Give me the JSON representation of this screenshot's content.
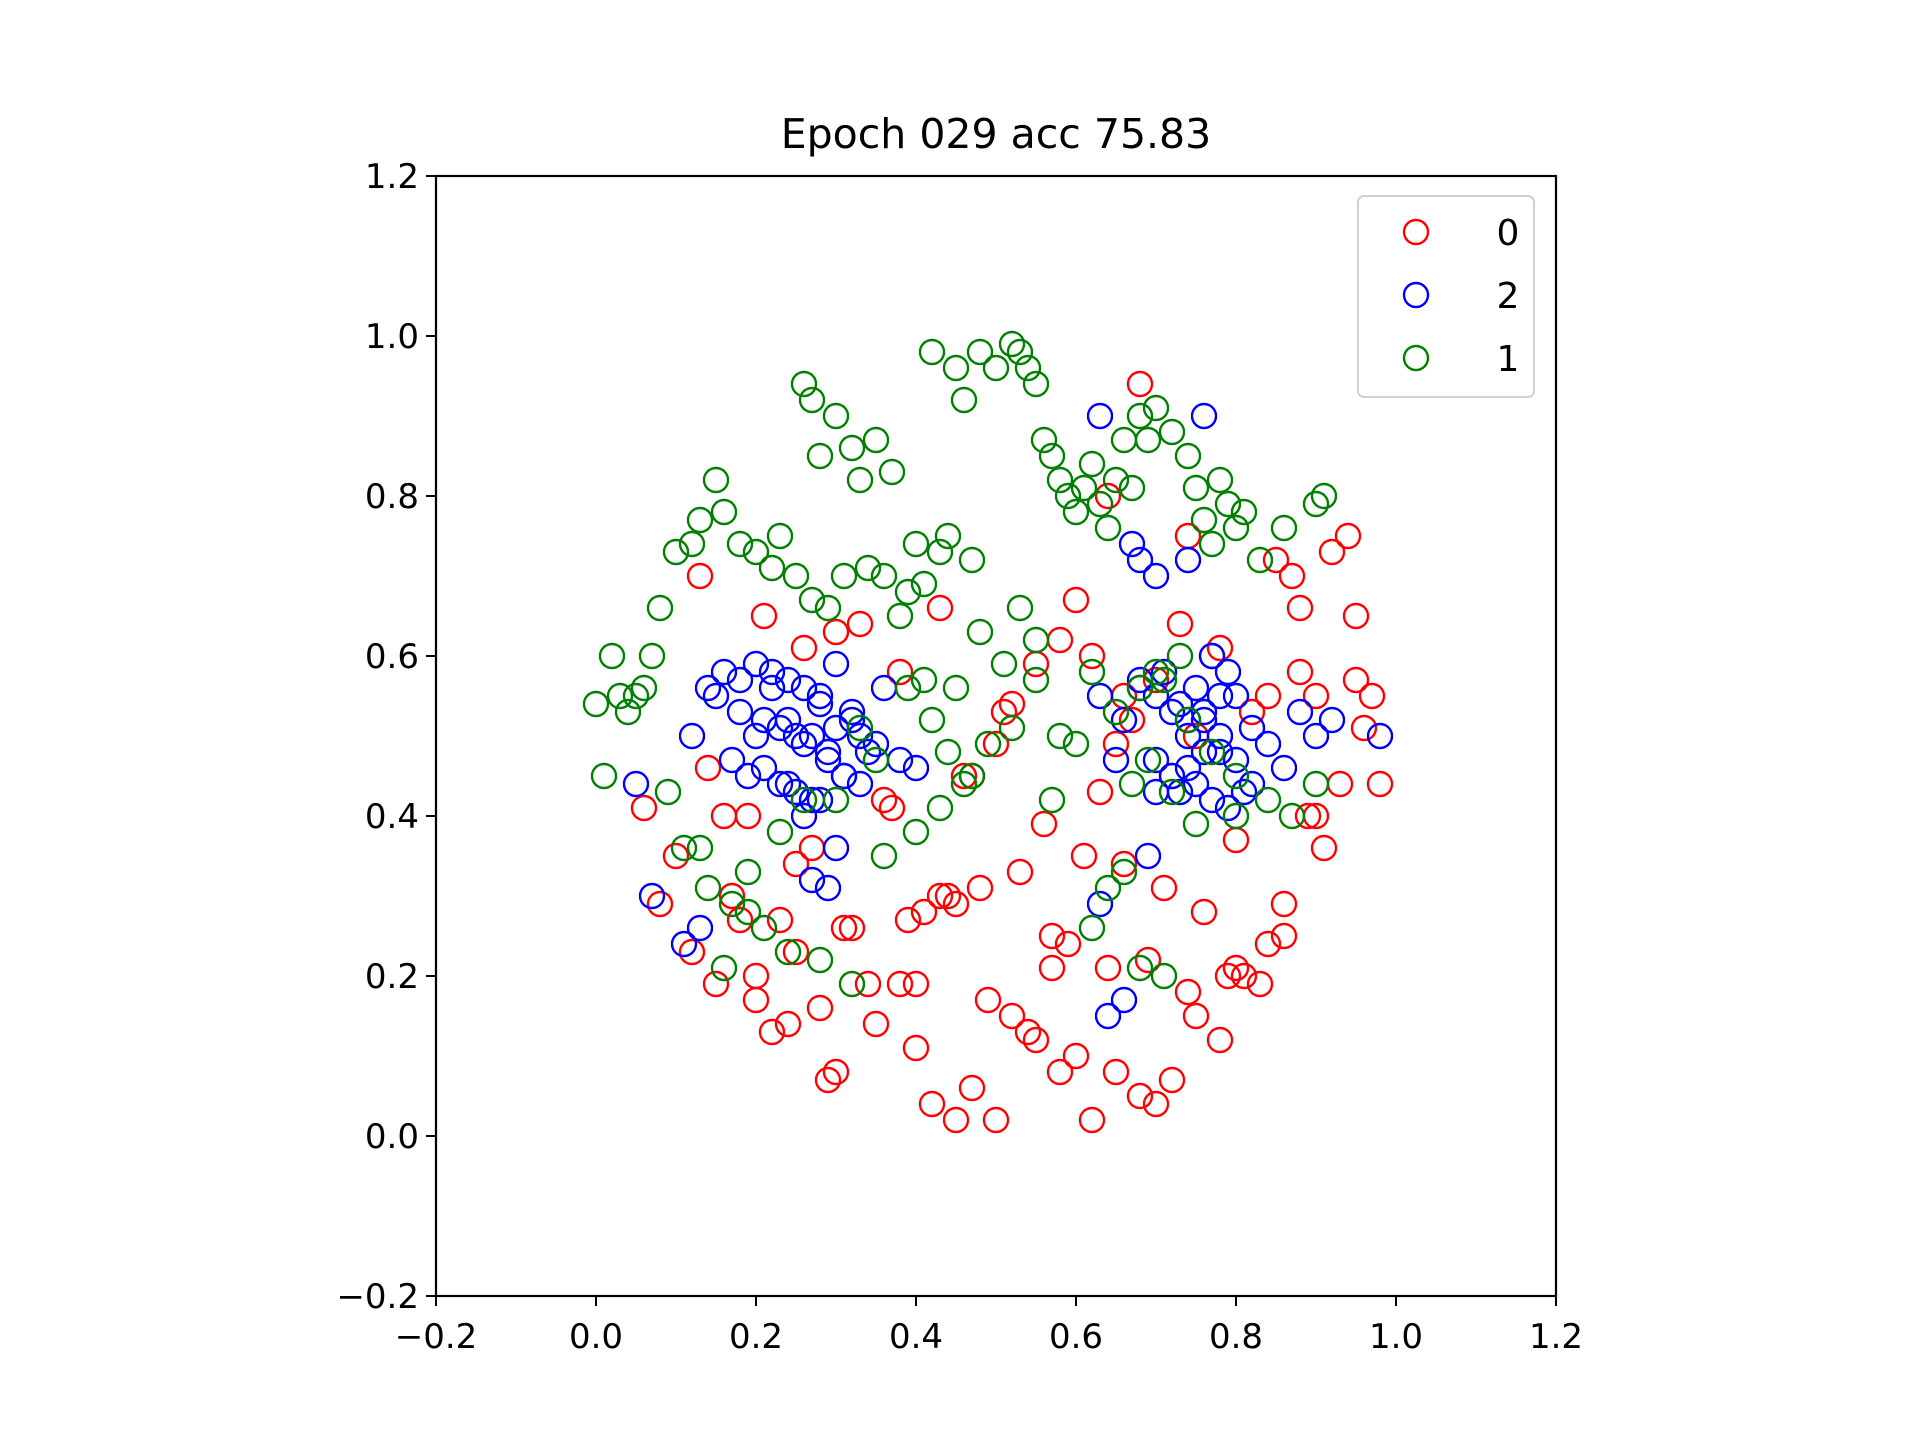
{
  "chart_data": {
    "type": "scatter",
    "title": "Epoch 029 acc  75.83",
    "xlabel": "",
    "ylabel": "",
    "xlim": [
      -0.2,
      1.2
    ],
    "ylim": [
      -0.2,
      1.2
    ],
    "xticks": [
      "−0.2",
      "0.0",
      "0.2",
      "0.4",
      "0.6",
      "0.8",
      "1.0",
      "1.2"
    ],
    "yticks": [
      "−0.2",
      "0.0",
      "0.2",
      "0.4",
      "0.6",
      "0.8",
      "1.0",
      "1.2"
    ],
    "legend_position": "top-right",
    "marker": "open-circle",
    "series": [
      {
        "name": "0",
        "color": "#ff0000",
        "x": [
          0.94,
          0.87,
          0.95,
          0.96,
          0.98,
          0.92,
          0.85,
          0.88,
          0.9,
          0.95,
          0.89,
          0.86,
          0.83,
          0.8,
          0.78,
          0.75,
          0.72,
          0.7,
          0.68,
          0.65,
          0.62,
          0.6,
          0.58,
          0.55,
          0.52,
          0.5,
          0.47,
          0.45,
          0.42,
          0.4,
          0.38,
          0.35,
          0.32,
          0.3,
          0.28,
          0.25,
          0.22,
          0.2,
          0.18,
          0.15,
          0.12,
          0.1,
          0.08,
          0.06,
          0.14,
          0.19,
          0.23,
          0.27,
          0.31,
          0.36,
          0.41,
          0.44,
          0.48,
          0.53,
          0.57,
          0.61,
          0.66,
          0.71,
          0.76,
          0.81,
          0.86,
          0.91,
          0.84,
          0.79,
          0.74,
          0.69,
          0.64,
          0.59,
          0.54,
          0.49,
          0.43,
          0.39,
          0.34,
          0.29,
          0.24,
          0.17,
          0.21,
          0.26,
          0.33,
          0.37,
          0.46,
          0.51,
          0.56,
          0.63,
          0.67,
          0.73,
          0.77,
          0.82,
          0.88,
          0.93,
          0.97,
          0.65,
          0.7,
          0.75,
          0.8,
          0.6,
          0.55,
          0.5,
          0.45,
          0.4,
          0.58,
          0.62,
          0.66,
          0.72,
          0.78,
          0.84,
          0.9,
          0.68,
          0.74,
          0.64,
          0.57,
          0.52,
          0.47,
          0.43,
          0.38,
          0.3,
          0.25,
          0.2,
          0.16,
          0.13
        ],
        "y": [
          0.75,
          0.7,
          0.57,
          0.51,
          0.44,
          0.73,
          0.72,
          0.66,
          0.55,
          0.65,
          0.4,
          0.25,
          0.19,
          0.21,
          0.12,
          0.15,
          0.07,
          0.04,
          0.05,
          0.08,
          0.02,
          0.1,
          0.08,
          0.12,
          0.15,
          0.02,
          0.06,
          0.02,
          0.04,
          0.11,
          0.19,
          0.14,
          0.26,
          0.08,
          0.16,
          0.23,
          0.13,
          0.17,
          0.27,
          0.19,
          0.23,
          0.35,
          0.29,
          0.41,
          0.46,
          0.4,
          0.27,
          0.36,
          0.26,
          0.42,
          0.28,
          0.3,
          0.31,
          0.33,
          0.25,
          0.35,
          0.34,
          0.31,
          0.28,
          0.2,
          0.29,
          0.36,
          0.24,
          0.2,
          0.18,
          0.22,
          0.21,
          0.24,
          0.13,
          0.17,
          0.3,
          0.27,
          0.19,
          0.07,
          0.14,
          0.3,
          0.65,
          0.61,
          0.64,
          0.41,
          0.45,
          0.53,
          0.39,
          0.43,
          0.52,
          0.64,
          0.6,
          0.53,
          0.58,
          0.44,
          0.55,
          0.49,
          0.57,
          0.5,
          0.37,
          0.67,
          0.59,
          0.49,
          0.29,
          0.19,
          0.62,
          0.6,
          0.55,
          0.45,
          0.61,
          0.55,
          0.4,
          0.94,
          0.75,
          0.8,
          0.21,
          0.54,
          0.45,
          0.66,
          0.58,
          0.63,
          0.34,
          0.2,
          0.4,
          0.7
        ]
      },
      {
        "name": "2",
        "color": "#0000ff",
        "x": [
          0.15,
          0.18,
          0.2,
          0.22,
          0.24,
          0.26,
          0.28,
          0.3,
          0.32,
          0.34,
          0.17,
          0.19,
          0.21,
          0.23,
          0.25,
          0.27,
          0.29,
          0.31,
          0.33,
          0.35,
          0.14,
          0.16,
          0.18,
          0.2,
          0.22,
          0.24,
          0.26,
          0.28,
          0.3,
          0.32,
          0.36,
          0.38,
          0.4,
          0.21,
          0.23,
          0.25,
          0.27,
          0.29,
          0.31,
          0.26,
          0.28,
          0.24,
          0.27,
          0.29,
          0.3,
          0.33,
          0.12,
          0.11,
          0.07,
          0.05,
          0.13,
          0.7,
          0.72,
          0.74,
          0.76,
          0.78,
          0.8,
          0.82,
          0.84,
          0.86,
          0.68,
          0.7,
          0.72,
          0.74,
          0.76,
          0.78,
          0.8,
          0.82,
          0.66,
          0.68,
          0.7,
          0.73,
          0.75,
          0.77,
          0.79,
          0.81,
          0.73,
          0.75,
          0.77,
          0.79,
          0.74,
          0.76,
          0.78,
          0.71,
          0.65,
          0.63,
          0.88,
          0.9,
          0.92,
          0.98,
          0.67,
          0.7,
          0.74,
          0.76,
          0.63,
          0.68,
          0.66,
          0.69,
          0.64,
          0.63
        ],
        "y": [
          0.55,
          0.53,
          0.5,
          0.56,
          0.52,
          0.49,
          0.54,
          0.51,
          0.53,
          0.48,
          0.47,
          0.45,
          0.46,
          0.44,
          0.43,
          0.42,
          0.47,
          0.45,
          0.44,
          0.49,
          0.56,
          0.58,
          0.57,
          0.59,
          0.58,
          0.57,
          0.56,
          0.55,
          0.59,
          0.52,
          0.56,
          0.47,
          0.46,
          0.52,
          0.51,
          0.5,
          0.5,
          0.48,
          0.45,
          0.4,
          0.42,
          0.44,
          0.32,
          0.31,
          0.36,
          0.5,
          0.5,
          0.24,
          0.3,
          0.44,
          0.26,
          0.55,
          0.53,
          0.5,
          0.52,
          0.48,
          0.55,
          0.51,
          0.49,
          0.46,
          0.57,
          0.47,
          0.45,
          0.46,
          0.48,
          0.5,
          0.47,
          0.44,
          0.52,
          0.56,
          0.43,
          0.43,
          0.44,
          0.42,
          0.41,
          0.43,
          0.54,
          0.56,
          0.6,
          0.58,
          0.52,
          0.53,
          0.55,
          0.58,
          0.47,
          0.55,
          0.53,
          0.5,
          0.52,
          0.5,
          0.74,
          0.7,
          0.72,
          0.9,
          0.9,
          0.72,
          0.17,
          0.35,
          0.15,
          0.29
        ]
      },
      {
        "name": "1",
        "color": "#008000",
        "x": [
          0.26,
          0.27,
          0.3,
          0.28,
          0.32,
          0.35,
          0.37,
          0.33,
          0.4,
          0.43,
          0.45,
          0.48,
          0.42,
          0.46,
          0.5,
          0.52,
          0.53,
          0.54,
          0.55,
          0.56,
          0.57,
          0.58,
          0.59,
          0.6,
          0.61,
          0.62,
          0.63,
          0.64,
          0.65,
          0.66,
          0.67,
          0.68,
          0.69,
          0.7,
          0.72,
          0.74,
          0.75,
          0.76,
          0.77,
          0.78,
          0.79,
          0.8,
          0.81,
          0.83,
          0.86,
          0.9,
          0.91,
          0.44,
          0.47,
          0.41,
          0.39,
          0.38,
          0.36,
          0.34,
          0.31,
          0.29,
          0.27,
          0.25,
          0.23,
          0.22,
          0.2,
          0.18,
          0.16,
          0.15,
          0.13,
          0.12,
          0.1,
          0.08,
          0.07,
          0.06,
          0.05,
          0.04,
          0.03,
          0.02,
          0.0,
          0.01,
          0.09,
          0.11,
          0.14,
          0.17,
          0.19,
          0.21,
          0.24,
          0.28,
          0.32,
          0.36,
          0.4,
          0.43,
          0.46,
          0.49,
          0.52,
          0.55,
          0.58,
          0.62,
          0.65,
          0.68,
          0.71,
          0.74,
          0.77,
          0.8,
          0.84,
          0.87,
          0.9,
          0.45,
          0.48,
          0.51,
          0.53,
          0.41,
          0.44,
          0.47,
          0.57,
          0.6,
          0.67,
          0.7,
          0.73,
          0.35,
          0.33,
          0.3,
          0.26,
          0.23,
          0.19,
          0.16,
          0.13,
          0.55,
          0.42,
          0.39,
          0.71,
          0.68,
          0.66,
          0.64,
          0.62,
          0.75,
          0.72,
          0.69,
          0.8
        ],
        "y": [
          0.94,
          0.92,
          0.9,
          0.85,
          0.86,
          0.87,
          0.83,
          0.82,
          0.74,
          0.73,
          0.96,
          0.98,
          0.98,
          0.92,
          0.96,
          0.99,
          0.98,
          0.96,
          0.94,
          0.87,
          0.85,
          0.82,
          0.8,
          0.78,
          0.81,
          0.84,
          0.79,
          0.76,
          0.82,
          0.87,
          0.81,
          0.9,
          0.87,
          0.91,
          0.88,
          0.85,
          0.81,
          0.77,
          0.74,
          0.82,
          0.79,
          0.76,
          0.78,
          0.72,
          0.76,
          0.79,
          0.8,
          0.75,
          0.72,
          0.69,
          0.68,
          0.65,
          0.7,
          0.71,
          0.7,
          0.66,
          0.67,
          0.7,
          0.75,
          0.71,
          0.73,
          0.74,
          0.78,
          0.82,
          0.77,
          0.74,
          0.73,
          0.66,
          0.6,
          0.56,
          0.55,
          0.53,
          0.55,
          0.6,
          0.54,
          0.45,
          0.43,
          0.36,
          0.31,
          0.29,
          0.28,
          0.26,
          0.23,
          0.22,
          0.19,
          0.35,
          0.38,
          0.41,
          0.44,
          0.49,
          0.51,
          0.57,
          0.5,
          0.58,
          0.53,
          0.56,
          0.57,
          0.52,
          0.48,
          0.45,
          0.42,
          0.4,
          0.44,
          0.56,
          0.63,
          0.59,
          0.66,
          0.57,
          0.48,
          0.45,
          0.42,
          0.49,
          0.44,
          0.58,
          0.6,
          0.47,
          0.51,
          0.42,
          0.42,
          0.38,
          0.33,
          0.21,
          0.36,
          0.62,
          0.52,
          0.56,
          0.2,
          0.21,
          0.33,
          0.31,
          0.26,
          0.39,
          0.43,
          0.47,
          0.4
        ]
      }
    ]
  }
}
